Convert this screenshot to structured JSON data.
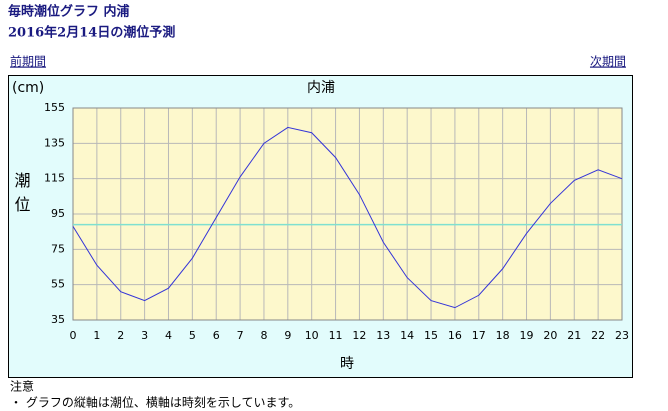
{
  "header": {
    "title": "毎時潮位グラフ 内浦",
    "subtitle": "2016年2月14日の潮位予測"
  },
  "nav": {
    "prev": "前期間",
    "next": "次期間"
  },
  "notes": {
    "title": "注意",
    "lines": [
      "・ グラフの縦軸は潮位、横軸は時刻を示しています。"
    ]
  },
  "chart_data": {
    "type": "line",
    "title": "内浦",
    "unit_label": "(cm)",
    "ylabel": "潮位",
    "xlabel": "時",
    "x": [
      0,
      1,
      2,
      3,
      4,
      5,
      6,
      7,
      8,
      9,
      10,
      11,
      12,
      13,
      14,
      15,
      16,
      17,
      18,
      19,
      20,
      21,
      22,
      23
    ],
    "series": [
      {
        "color": "#3434d8",
        "values": [
          88,
          66,
          51,
          46,
          53,
          70,
          93,
          116,
          135,
          144,
          141,
          127,
          106,
          79,
          59,
          46,
          42,
          49,
          64,
          84,
          101,
          114,
          120,
          115
        ]
      }
    ],
    "reference_line": {
      "value": 89,
      "color": "#7fe0d0"
    },
    "xlim": [
      0,
      23
    ],
    "xticks": [
      0,
      1,
      2,
      3,
      4,
      5,
      6,
      7,
      8,
      9,
      10,
      11,
      12,
      13,
      14,
      15,
      16,
      17,
      18,
      19,
      20,
      21,
      22,
      23
    ],
    "ylim": [
      35,
      155
    ],
    "yticks": [
      35,
      55,
      75,
      95,
      115,
      135,
      155
    ],
    "grid": true
  }
}
